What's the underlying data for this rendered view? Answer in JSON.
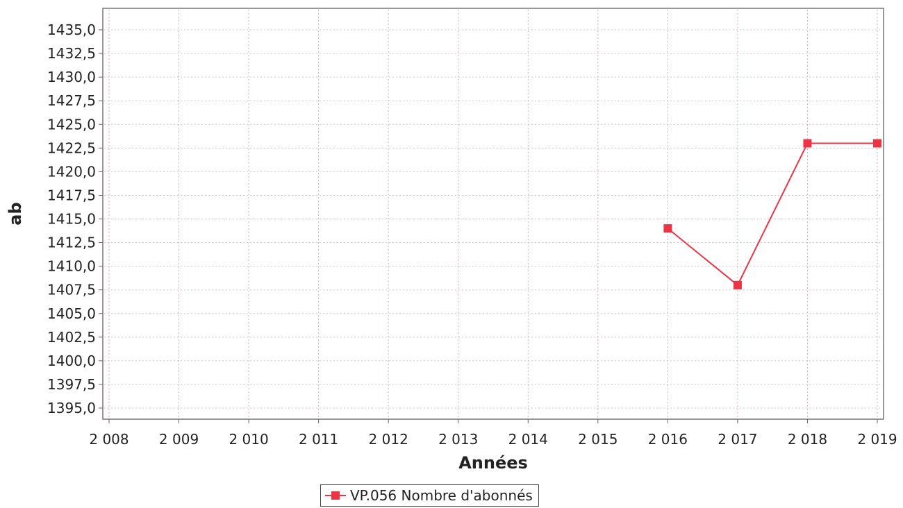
{
  "chart_data": {
    "type": "line",
    "title": "",
    "xlabel": "Années",
    "ylabel": "ab",
    "x": [
      2016,
      2017,
      2018,
      2019
    ],
    "x_ticks": [
      "2 008",
      "2 009",
      "2 010",
      "2 011",
      "2 012",
      "2 013",
      "2 014",
      "2 015",
      "2 016",
      "2 017",
      "2 018",
      "2 019"
    ],
    "x_tick_values": [
      2008,
      2009,
      2010,
      2011,
      2012,
      2013,
      2014,
      2015,
      2016,
      2017,
      2018,
      2019
    ],
    "xlim": [
      2008,
      2019
    ],
    "y_ticks": [
      "1435,0",
      "1432,5",
      "1430,0",
      "1427,5",
      "1425,0",
      "1422,5",
      "1420,0",
      "1417,5",
      "1415,0",
      "1412,5",
      "1410,0",
      "1407,5",
      "1405,0",
      "1402,5",
      "1400,0",
      "1397,5",
      "1395,0"
    ],
    "y_tick_values": [
      1435,
      1432.5,
      1430,
      1427.5,
      1425,
      1422.5,
      1420,
      1417.5,
      1415,
      1412.5,
      1410,
      1407.5,
      1405,
      1402.5,
      1400,
      1397.5,
      1395
    ],
    "ylim": [
      1395,
      1435
    ],
    "grid": true,
    "legend_position": "bottom-center",
    "series": [
      {
        "name": "VP.056 Nombre d'abonnés",
        "values": [
          1414,
          1408,
          1423,
          1423
        ],
        "color": "#ee3344"
      }
    ]
  }
}
